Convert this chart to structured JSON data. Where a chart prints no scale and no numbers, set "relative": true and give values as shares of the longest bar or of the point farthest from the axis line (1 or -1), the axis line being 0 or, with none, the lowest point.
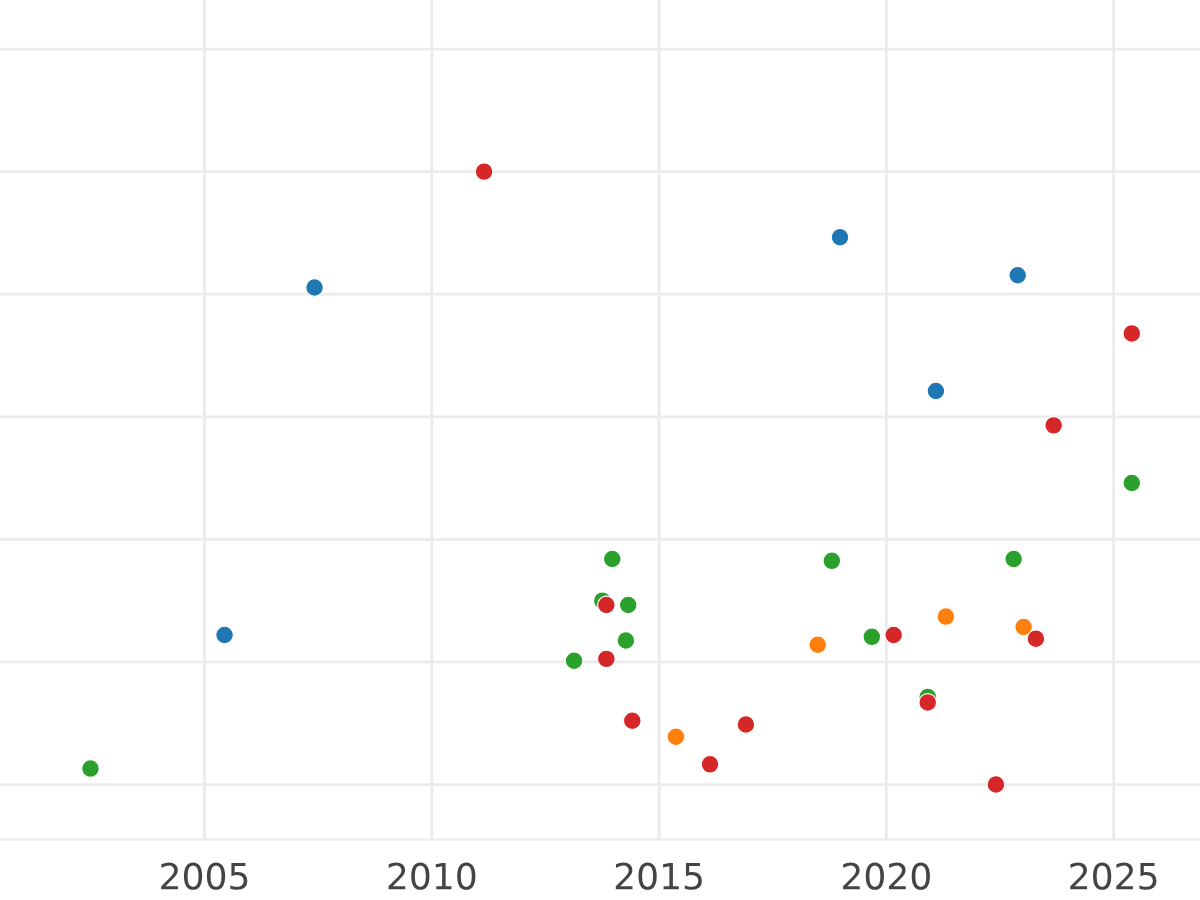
{
  "chart_data": {
    "type": "scatter",
    "relative": true,
    "xlim": [
      2000.5,
      2026.9
    ],
    "xticks": [
      2005,
      2010,
      2015,
      2020,
      2025
    ],
    "grid": true,
    "marker": "circle",
    "tick_labels": "x",
    "series": [
      {
        "color": "#1f77b4",
        "x": [
          2007.42,
          2005.44,
          2018.98,
          2022.89,
          2021.09
        ],
        "values": [
          0.811,
          0.244,
          0.893,
          0.831,
          0.642
        ]
      },
      {
        "color": "#ff7f0e",
        "x": [
          2018.49,
          2021.31,
          2023.02,
          2015.37
        ],
        "values": [
          0.228,
          0.274,
          0.257,
          0.078
        ]
      },
      {
        "color": "#2ca02c",
        "x": [
          2002.49,
          2013.97,
          2013.75,
          2014.32,
          2014.27,
          2013.13,
          2018.8,
          2019.68,
          2022.8,
          2025.4,
          2020.91
        ],
        "values": [
          0.026,
          0.368,
          0.3,
          0.293,
          0.235,
          0.202,
          0.365,
          0.241,
          0.368,
          0.492,
          0.143
        ]
      },
      {
        "color": "#d62728",
        "x": [
          2011.15,
          2025.4,
          2023.68,
          2013.84,
          2020.16,
          2023.29,
          2013.84,
          2020.91,
          2014.41,
          2016.91,
          2016.12,
          2022.41
        ],
        "values": [
          1,
          0.736,
          0.586,
          0.293,
          0.244,
          0.238,
          0.205,
          0.134,
          0.104,
          0.098,
          0.033,
          0
        ]
      }
    ]
  }
}
